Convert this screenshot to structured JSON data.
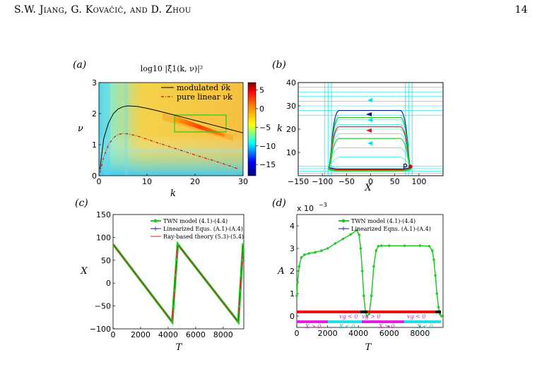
{
  "header": {
    "authors": "S.W. Jiang, G. Kovačič, and D. Zhou",
    "page_number": "14"
  },
  "panels": {
    "a": {
      "label": "(a)",
      "title": "log10 |ξ̂1(k, ν)|²",
      "xlabel": "k",
      "ylabel": "ν",
      "xticks": [
        "0",
        "10",
        "20",
        "30"
      ],
      "yticks": [
        "0",
        "1",
        "2",
        "3"
      ],
      "colorbar_ticks": [
        "5",
        "0",
        "−5",
        "−10",
        "−15"
      ],
      "legend": [
        "modulated ν̄k",
        "pure linear νk"
      ]
    },
    "b": {
      "label": "(b)",
      "xlabel": "X",
      "ylabel": "k",
      "xticks": [
        "−150",
        "−100",
        "−50",
        "0",
        "50",
        "100"
      ],
      "yticks": [
        "10",
        "20",
        "30",
        "40"
      ],
      "point_label": "P"
    },
    "c": {
      "label": "(c)",
      "xlabel": "T",
      "ylabel": "X",
      "xticks": [
        "0",
        "2000",
        "4000",
        "6000",
        "8000"
      ],
      "yticks": [
        "150",
        "100",
        "50",
        "0",
        "−50",
        "−100"
      ],
      "legend": [
        "TWN model (4.1)-(4.4)",
        "Linearized Equs. (A.1)-(A.4)",
        "Ray-based theory (5.3)-(5.4)"
      ]
    },
    "d": {
      "label": "(d)",
      "xlabel": "T",
      "ylabel": "A",
      "scale_label": "x 10",
      "scale_exp": "−3",
      "xticks": [
        "0",
        "2000",
        "4000",
        "6000",
        "8000"
      ],
      "yticks": [
        "0",
        "1",
        "2",
        "3",
        "4"
      ],
      "legend": [
        "TWN model (4.1)-(4.4)",
        "Linearized Eqns. (A.1)-(A.4)"
      ],
      "band_top": [
        "vg < 0",
        "vg > 0",
        "vg < 0"
      ],
      "band_bottom": [
        "X > 0",
        "X < 0",
        "X > 0",
        "X < 0"
      ]
    }
  },
  "chart_data": [
    {
      "type": "heatmap",
      "panel": "a",
      "xlim": [
        0,
        30
      ],
      "ylim": [
        0,
        3
      ],
      "colorbar_range": [
        -18,
        7
      ],
      "series": [
        {
          "name": "modulated ν̄k",
          "x": [
            0.2,
            1,
            2,
            3,
            4,
            5,
            6,
            8,
            10,
            12,
            15,
            18,
            21,
            24,
            27,
            30
          ],
          "y": [
            0.2,
            1.2,
            1.7,
            2.0,
            2.15,
            2.22,
            2.25,
            2.23,
            2.17,
            2.1,
            1.98,
            1.86,
            1.74,
            1.62,
            1.5,
            1.38
          ]
        },
        {
          "name": "pure linear νk",
          "x": [
            0.2,
            1,
            2,
            3,
            4,
            5,
            6,
            8,
            10,
            12,
            15,
            18,
            21,
            24,
            27,
            29
          ],
          "y": [
            0.1,
            0.6,
            1.0,
            1.22,
            1.33,
            1.36,
            1.35,
            1.28,
            1.18,
            1.07,
            0.92,
            0.77,
            0.62,
            0.48,
            0.33,
            0.22
          ]
        }
      ]
    },
    {
      "type": "line",
      "panel": "b",
      "xlim": [
        -150,
        150
      ],
      "ylim": [
        0,
        40
      ],
      "orbit_levels": [
        4,
        8,
        12,
        16,
        18,
        20,
        22,
        24,
        26,
        30,
        34,
        38
      ],
      "highlighted_orbits": [
        {
          "color": "#0a1a9e",
          "k_top": 28
        },
        {
          "color": "#ee1111",
          "k_top": 21
        },
        {
          "color": "#22cc22",
          "k_top": 25
        },
        {
          "color": "#22cc22",
          "k_top": 16
        }
      ]
    },
    {
      "type": "line",
      "panel": "c",
      "xlim": [
        0,
        9500
      ],
      "ylim": [
        -100,
        150
      ],
      "series": [
        {
          "name": "TWN model (4.1)-(4.4)",
          "x": [
            0,
            4300,
            4700,
            9100,
            9450
          ],
          "y": [
            85,
            -85,
            85,
            -85,
            85
          ]
        }
      ]
    },
    {
      "type": "line",
      "panel": "d",
      "xlim": [
        0,
        9500
      ],
      "ylim": [
        -0.0005,
        0.0045
      ],
      "series": [
        {
          "name": "TWN model (4.1)-(4.4)",
          "x": [
            0,
            50,
            150,
            300,
            500,
            800,
            1200,
            1600,
            2000,
            2500,
            3000,
            3500,
            3900,
            4050,
            4150,
            4250,
            4350,
            4450,
            4550,
            4700,
            4850,
            5000,
            5150,
            5300,
            5500,
            6000,
            7000,
            8000,
            8600,
            8800,
            8900,
            9000,
            9100,
            9200,
            9300,
            9400
          ],
          "y": [
            0.0009,
            0.0015,
            0.0022,
            0.0026,
            0.00272,
            0.00278,
            0.00283,
            0.0029,
            0.003,
            0.00322,
            0.00342,
            0.00362,
            0.0038,
            0.0036,
            0.003,
            0.002,
            0.0009,
            0.0002,
            0.0,
            0.0001,
            0.0009,
            0.0022,
            0.0029,
            0.0031,
            0.00312,
            0.00312,
            0.00312,
            0.00312,
            0.0031,
            0.0029,
            0.0025,
            0.0018,
            0.001,
            0.0004,
            8e-05,
            0.0
          ]
        }
      ]
    }
  ]
}
